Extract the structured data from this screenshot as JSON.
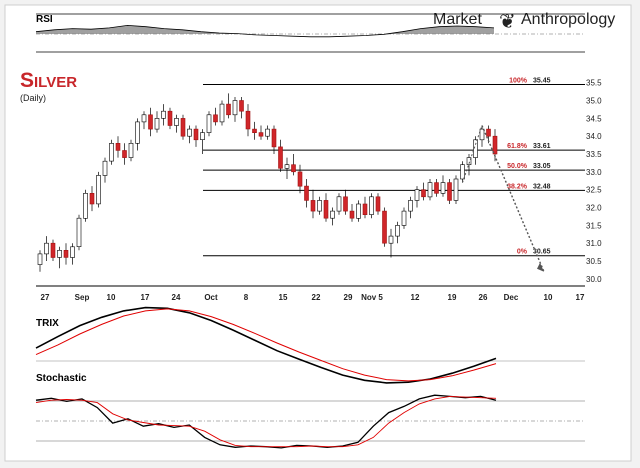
{
  "brand": {
    "left": "Market",
    "right": "Anthropology"
  },
  "chart_data": [
    {
      "type": "line",
      "panel": "RSI",
      "title": "RSI",
      "y": [
        52,
        55,
        57,
        56,
        58,
        62,
        60,
        57,
        55,
        52,
        50,
        49,
        47,
        46,
        45,
        44,
        44,
        45,
        46,
        48,
        52,
        57,
        60,
        61,
        60,
        58
      ],
      "ylim": [
        20,
        80
      ],
      "reference_lines": [
        70,
        50,
        30
      ]
    },
    {
      "type": "candlestick",
      "panel": "price",
      "title": "Silver",
      "subtitle": "(Daily)",
      "x_ticks": [
        "27",
        "Sep",
        "10",
        "17",
        "24",
        "Oct",
        "8",
        "15",
        "22",
        "29",
        "Nov 5",
        "12",
        "19",
        "26",
        "Dec",
        "10",
        "17"
      ],
      "y_ticks": [
        "35.5",
        "35.0",
        "34.5",
        "34.0",
        "33.5",
        "33.0",
        "32.5",
        "32.0",
        "31.5",
        "31.0",
        "30.5",
        "30.0"
      ],
      "ylim": [
        29.8,
        35.8
      ],
      "fibonacci": [
        {
          "pct": "100%",
          "value": "35.45",
          "level": 35.45
        },
        {
          "pct": "61.8%",
          "value": "33.61",
          "level": 33.61
        },
        {
          "pct": "50.0%",
          "value": "33.05",
          "level": 33.05
        },
        {
          "pct": "38.2%",
          "value": "32.48",
          "level": 32.48
        },
        {
          "pct": "0%",
          "value": "30.65",
          "level": 30.65
        }
      ],
      "candles": [
        [
          30.4,
          30.8,
          30.2,
          30.7
        ],
        [
          30.7,
          31.2,
          30.5,
          31.0
        ],
        [
          31.0,
          31.1,
          30.5,
          30.6
        ],
        [
          30.6,
          30.9,
          30.3,
          30.8
        ],
        [
          30.8,
          31.0,
          30.4,
          30.6
        ],
        [
          30.6,
          31.0,
          30.4,
          30.9
        ],
        [
          30.9,
          31.8,
          30.8,
          31.7
        ],
        [
          31.7,
          32.5,
          31.6,
          32.4
        ],
        [
          32.4,
          32.6,
          31.9,
          32.1
        ],
        [
          32.1,
          33.0,
          32.0,
          32.9
        ],
        [
          32.9,
          33.4,
          32.7,
          33.3
        ],
        [
          33.3,
          33.9,
          33.2,
          33.8
        ],
        [
          33.8,
          34.0,
          33.4,
          33.6
        ],
        [
          33.6,
          33.8,
          33.2,
          33.4
        ],
        [
          33.4,
          33.9,
          33.3,
          33.8
        ],
        [
          33.8,
          34.5,
          33.6,
          34.4
        ],
        [
          34.4,
          34.7,
          34.2,
          34.6
        ],
        [
          34.6,
          34.8,
          34.0,
          34.2
        ],
        [
          34.2,
          34.7,
          34.1,
          34.5
        ],
        [
          34.5,
          34.9,
          34.3,
          34.7
        ],
        [
          34.7,
          34.8,
          34.2,
          34.3
        ],
        [
          34.3,
          34.6,
          34.1,
          34.5
        ],
        [
          34.5,
          34.6,
          33.9,
          34.0
        ],
        [
          34.0,
          34.3,
          33.8,
          34.2
        ],
        [
          34.2,
          34.3,
          33.7,
          33.9
        ],
        [
          33.9,
          34.2,
          33.5,
          34.1
        ],
        [
          34.1,
          34.7,
          34.0,
          34.6
        ],
        [
          34.6,
          34.8,
          34.3,
          34.4
        ],
        [
          34.4,
          35.0,
          34.3,
          34.9
        ],
        [
          34.9,
          35.2,
          34.5,
          34.6
        ],
        [
          34.6,
          35.1,
          34.4,
          35.0
        ],
        [
          35.0,
          35.1,
          34.5,
          34.7
        ],
        [
          34.7,
          34.9,
          34.0,
          34.2
        ],
        [
          34.2,
          34.4,
          33.9,
          34.1
        ],
        [
          34.1,
          34.3,
          33.9,
          34.0
        ],
        [
          34.0,
          34.3,
          33.9,
          34.2
        ],
        [
          34.2,
          34.3,
          33.5,
          33.7
        ],
        [
          33.7,
          33.9,
          33.0,
          33.1
        ],
        [
          33.1,
          33.4,
          32.8,
          33.2
        ],
        [
          33.2,
          33.5,
          32.9,
          33.0
        ],
        [
          33.0,
          33.2,
          32.4,
          32.6
        ],
        [
          32.6,
          32.8,
          32.0,
          32.2
        ],
        [
          32.2,
          32.5,
          31.7,
          31.9
        ],
        [
          31.9,
          32.3,
          31.8,
          32.2
        ],
        [
          32.2,
          32.4,
          31.6,
          31.7
        ],
        [
          31.7,
          32.0,
          31.5,
          31.9
        ],
        [
          31.9,
          32.4,
          31.8,
          32.3
        ],
        [
          32.3,
          32.5,
          31.8,
          31.9
        ],
        [
          31.9,
          32.1,
          31.6,
          31.7
        ],
        [
          31.7,
          32.2,
          31.6,
          32.1
        ],
        [
          32.1,
          32.3,
          31.7,
          31.8
        ],
        [
          31.8,
          32.4,
          31.7,
          32.3
        ],
        [
          32.3,
          32.4,
          31.8,
          31.9
        ],
        [
          31.9,
          32.0,
          30.9,
          31.0
        ],
        [
          31.0,
          31.4,
          30.6,
          31.2
        ],
        [
          31.2,
          31.6,
          31.0,
          31.5
        ],
        [
          31.5,
          32.0,
          31.4,
          31.9
        ],
        [
          31.9,
          32.3,
          31.7,
          32.2
        ],
        [
          32.2,
          32.6,
          32.0,
          32.5
        ],
        [
          32.5,
          32.7,
          32.2,
          32.3
        ],
        [
          32.3,
          32.8,
          32.2,
          32.7
        ],
        [
          32.7,
          32.8,
          32.3,
          32.4
        ],
        [
          32.4,
          32.9,
          32.3,
          32.7
        ],
        [
          32.7,
          32.8,
          32.1,
          32.2
        ],
        [
          32.2,
          32.9,
          32.1,
          32.8
        ],
        [
          32.8,
          33.3,
          32.7,
          33.2
        ],
        [
          33.2,
          33.5,
          32.9,
          33.4
        ],
        [
          33.4,
          34.0,
          33.2,
          33.9
        ],
        [
          33.9,
          34.3,
          33.7,
          34.2
        ],
        [
          34.2,
          34.3,
          33.8,
          34.0
        ],
        [
          34.0,
          34.2,
          33.3,
          33.5
        ]
      ]
    },
    {
      "type": "line",
      "panel": "TRIX",
      "title": "TRIX",
      "series": [
        {
          "color": "#000000",
          "values": [
            20,
            38,
            55,
            68,
            78,
            83,
            82,
            75,
            63,
            48,
            32,
            16,
            3,
            -10,
            -22,
            -30,
            -34,
            -33,
            -28,
            -19,
            -8,
            4
          ]
        },
        {
          "color": "#e00000",
          "values": [
            10,
            25,
            42,
            57,
            70,
            78,
            81,
            78,
            69,
            57,
            43,
            28,
            14,
            1,
            -12,
            -22,
            -29,
            -31,
            -29,
            -23,
            -14,
            -4
          ]
        }
      ],
      "ylim": [
        -45,
        95
      ]
    },
    {
      "type": "line",
      "panel": "Stochastic",
      "title": "Stochastic",
      "series": [
        {
          "color": "#000000",
          "values": [
            82,
            85,
            80,
            84,
            70,
            45,
            52,
            40,
            44,
            38,
            42,
            22,
            10,
            6,
            8,
            7,
            5,
            9,
            8,
            6,
            8,
            14,
            40,
            62,
            72,
            84,
            90,
            88,
            86,
            88,
            82
          ]
        },
        {
          "color": "#e00000",
          "values": [
            78,
            82,
            83,
            82,
            78,
            60,
            50,
            46,
            42,
            41,
            40,
            32,
            18,
            9,
            7,
            7,
            7,
            7,
            8,
            7,
            7,
            10,
            22,
            45,
            62,
            76,
            84,
            88,
            87,
            86,
            85
          ]
        }
      ],
      "ylim": [
        0,
        100
      ],
      "reference_lines": [
        80,
        50,
        20
      ]
    }
  ]
}
